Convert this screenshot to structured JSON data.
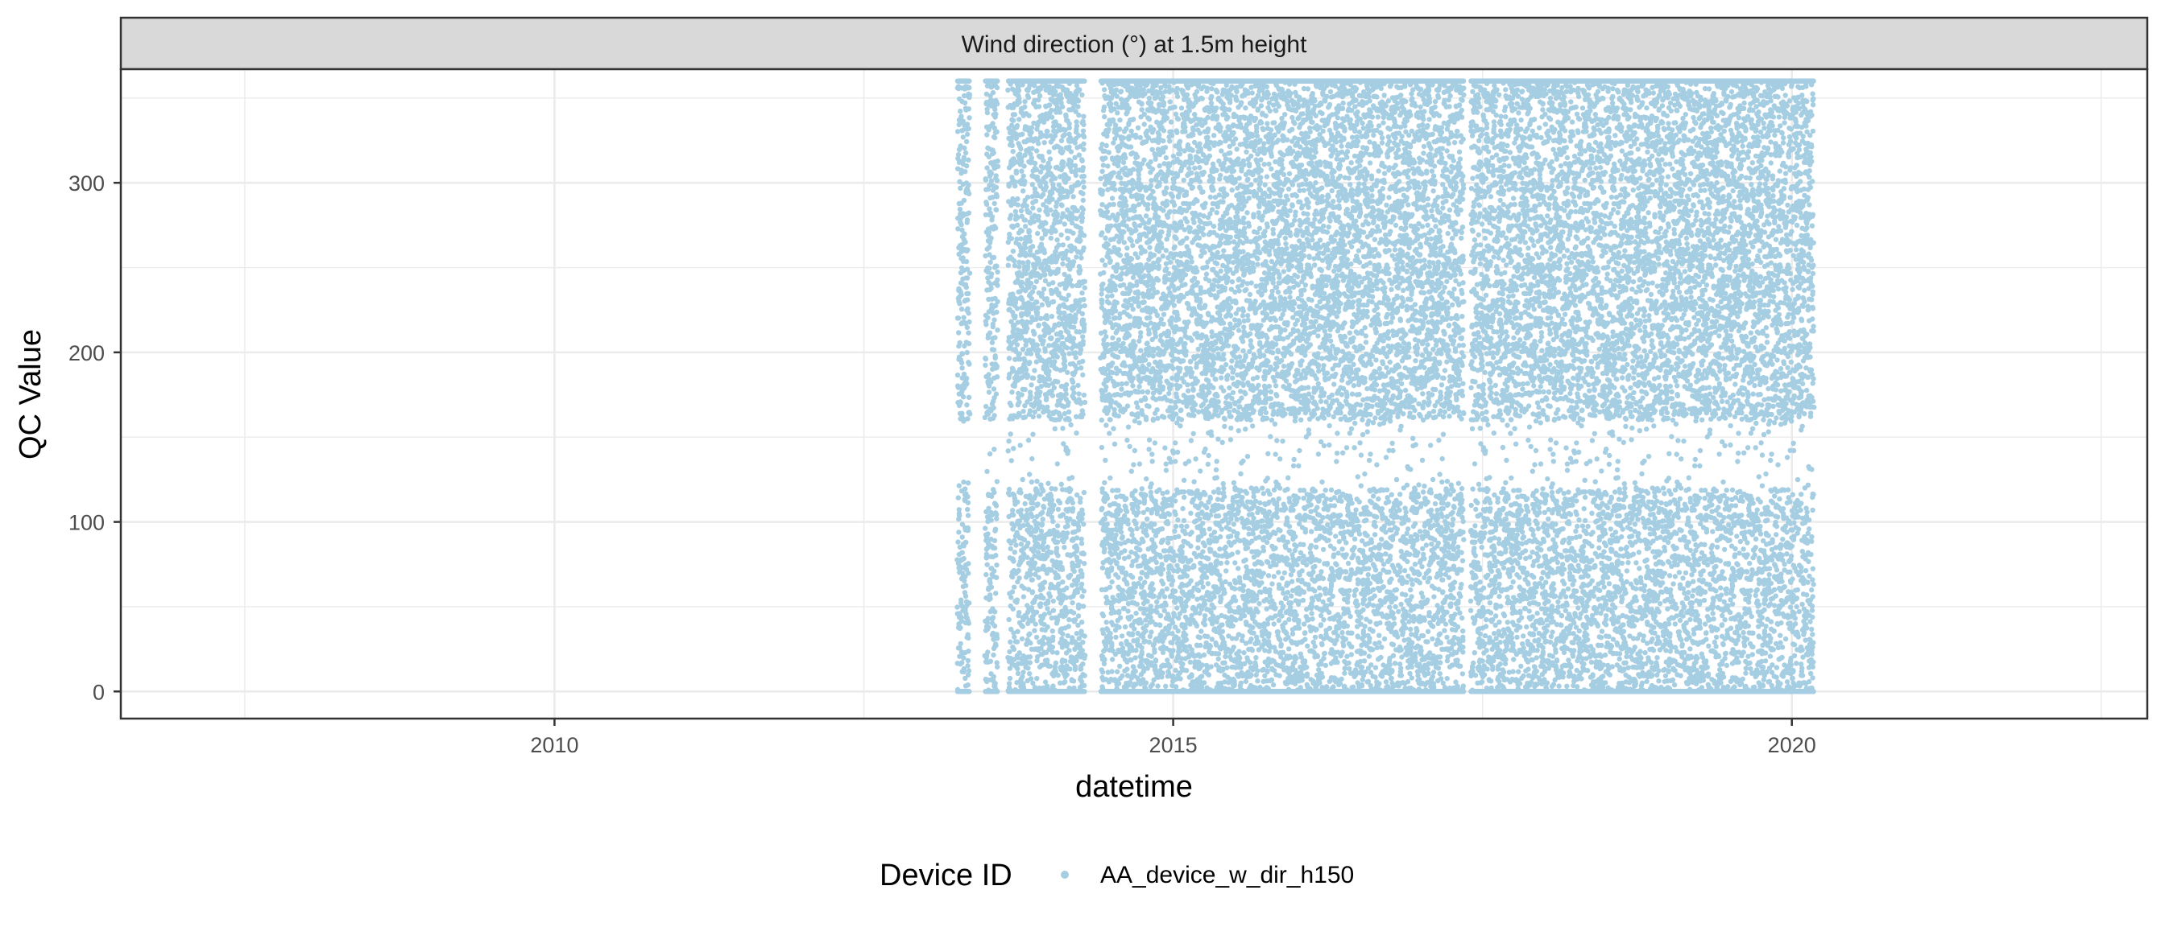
{
  "chart_data": {
    "type": "scatter",
    "facet_title": "Wind direction (°) at 1.5m height",
    "xlabel": "datetime",
    "ylabel": "QC Value",
    "xlim": [
      "2006-07-01",
      "2022-11-15"
    ],
    "ylim": [
      -16,
      367
    ],
    "x_ticks": [
      {
        "value": "2010-01-01",
        "label": "2010"
      },
      {
        "value": "2015-01-01",
        "label": "2015"
      },
      {
        "value": "2020-01-01",
        "label": "2020"
      }
    ],
    "y_ticks": [
      {
        "value": 0,
        "label": "0"
      },
      {
        "value": 100,
        "label": "100"
      },
      {
        "value": 200,
        "label": "200"
      },
      {
        "value": 300,
        "label": "300"
      }
    ],
    "grid": true,
    "legend": {
      "position": "bottom",
      "title": "Device ID",
      "entries": [
        "AA_device_w_dir_h150"
      ]
    },
    "colors": {
      "series": "#a6cee3",
      "strip_fill": "#d9d9d9",
      "grid": "#ebebeb",
      "border": "#333333"
    },
    "series": [
      {
        "name": "AA_device_w_dir_h150",
        "date_range": [
          "2013-04-05",
          "2020-03-05"
        ],
        "value_range": [
          0,
          360
        ],
        "data_gaps": [
          {
            "start": "2013-05-10",
            "end": "2013-06-25"
          },
          {
            "start": "2013-08-01",
            "end": "2013-09-01"
          },
          {
            "start": "2014-04-15",
            "end": "2014-06-01"
          },
          {
            "start": "2017-05-08",
            "end": "2017-05-28"
          }
        ]
      }
    ]
  }
}
